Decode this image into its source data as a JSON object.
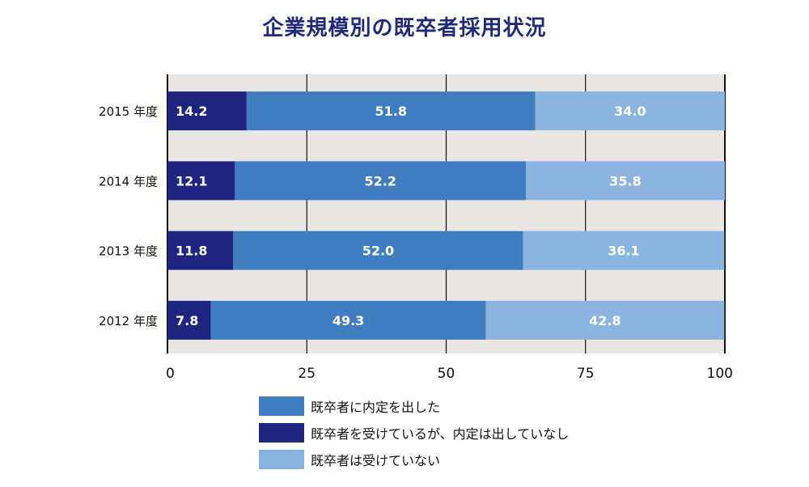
{
  "chart_data": {
    "type": "bar",
    "orientation": "horizontal",
    "stacked": true,
    "title": "企業規模別の既卒者採用状況",
    "categories": [
      "2015 年度",
      "2014 年度",
      "2013 年度",
      "2012 年度"
    ],
    "series": [
      {
        "name": "既卒者を受けているが、内定は出していなし",
        "color": "#1e2580",
        "values": [
          14.2,
          12.1,
          11.8,
          7.8
        ]
      },
      {
        "name": "既卒者に内定を出した",
        "color": "#3f7cc0",
        "values": [
          51.8,
          52.2,
          52.0,
          49.3
        ]
      },
      {
        "name": "既卒者は受けていない",
        "color": "#8bb4e0",
        "values": [
          34.0,
          35.8,
          36.1,
          42.8
        ]
      }
    ],
    "xlim": [
      0,
      100
    ],
    "xticks": [
      "0",
      "25",
      "50",
      "75",
      "100"
    ],
    "grid": true,
    "plot_background": "#e9e6e3"
  },
  "legend": [
    {
      "label": "既卒者に内定を出した",
      "color": "#3f7cc0"
    },
    {
      "label": "既卒者を受けているが、内定は出していなし",
      "color": "#1e2580"
    },
    {
      "label": "既卒者は受けていない",
      "color": "#8bb4e0"
    }
  ]
}
